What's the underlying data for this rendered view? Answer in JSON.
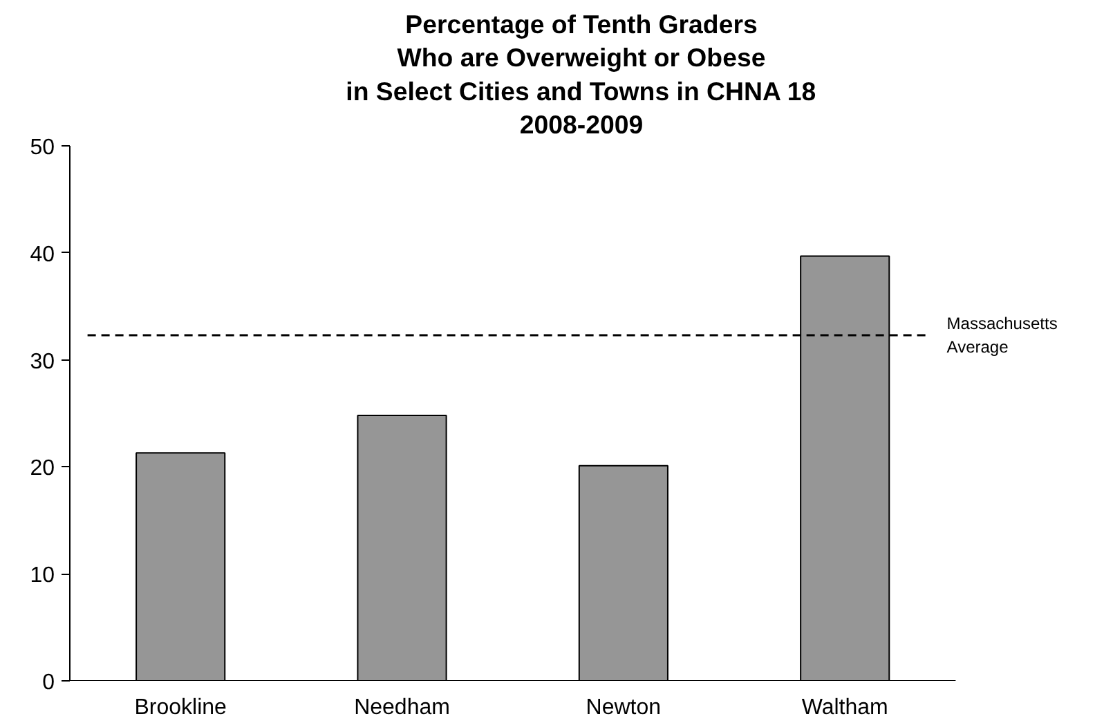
{
  "chart_data": {
    "type": "bar",
    "title": "Percentage of Tenth Graders\nWho are Overweight or Obese\nin Select Cities and Towns in CHNA 18\n2008-2009",
    "categories": [
      "Brookline",
      "Needham",
      "Newton",
      "Waltham"
    ],
    "values": [
      21.3,
      24.8,
      20.1,
      39.7
    ],
    "color": "#969696",
    "ylim": [
      0,
      50
    ],
    "yticks": [
      0,
      10,
      20,
      30,
      40,
      50
    ],
    "grid": false,
    "ref_lines": [
      {
        "axis": "y",
        "value": 32.3,
        "label": "Massachusetts\nAverage",
        "line_style": "dashed",
        "color": "#000000"
      }
    ]
  }
}
